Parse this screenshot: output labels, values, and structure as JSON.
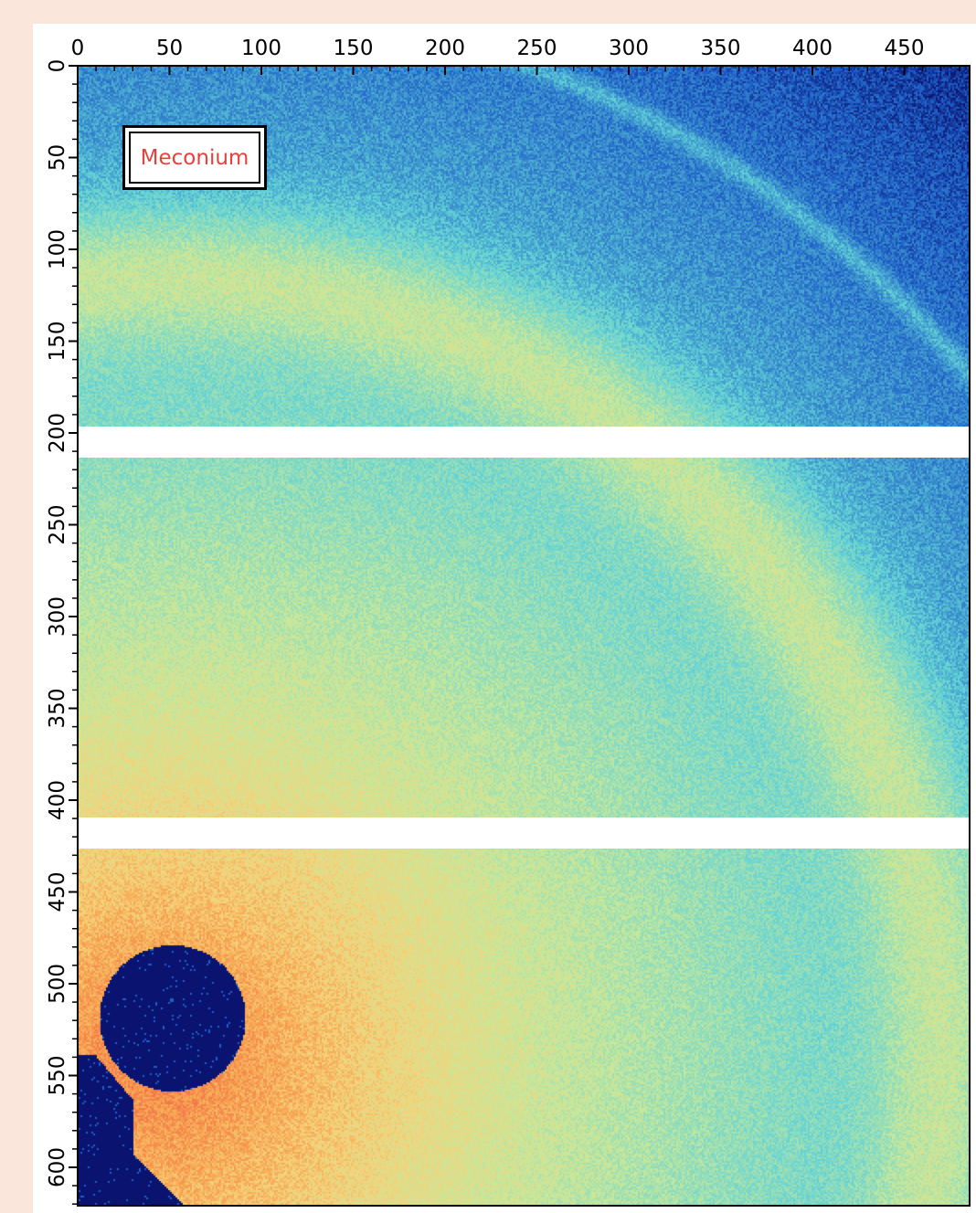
{
  "sample_label": "Meconium",
  "x_ticks": [
    "0",
    "50",
    "100",
    "150",
    "200",
    "250",
    "300",
    "350",
    "400",
    "450"
  ],
  "y_ticks": [
    "0",
    "50",
    "100",
    "150",
    "200",
    "250",
    "300",
    "350",
    "400",
    "450",
    "500",
    "550",
    "600"
  ],
  "colors": {
    "background": "#fbe6dc",
    "label_text": "#e8403b",
    "colormap": [
      "#0a1470",
      "#1e5fc8",
      "#63d3d6",
      "#c8e89a",
      "#f5d27a",
      "#f7a04e",
      "#ee4c4a"
    ]
  }
}
